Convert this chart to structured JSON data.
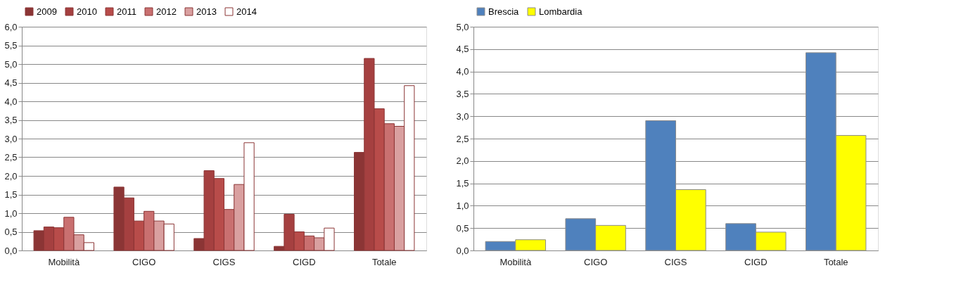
{
  "chart_data": [
    {
      "type": "bar",
      "categories": [
        "Mobilità",
        "CIGO",
        "CIGS",
        "CIGD",
        "Totale"
      ],
      "series": [
        {
          "name": "2009",
          "color": "#8b3535",
          "values": [
            0.53,
            1.7,
            0.32,
            0.11,
            2.63
          ]
        },
        {
          "name": "2010",
          "color": "#a54040",
          "values": [
            0.63,
            1.41,
            2.14,
            0.97,
            5.15
          ]
        },
        {
          "name": "2011",
          "color": "#b84c4a",
          "values": [
            0.61,
            0.79,
            1.93,
            0.5,
            3.8
          ]
        },
        {
          "name": "2012",
          "color": "#c97070",
          "values": [
            0.89,
            1.05,
            1.1,
            0.39,
            3.4
          ]
        },
        {
          "name": "2013",
          "color": "#d9a0a0",
          "values": [
            0.42,
            0.79,
            1.77,
            0.34,
            3.33
          ]
        },
        {
          "name": "2014",
          "color": "#ffffff",
          "values": [
            0.21,
            0.71,
            2.89,
            0.6,
            4.42
          ]
        }
      ],
      "ylim": [
        0,
        6
      ],
      "yticks": [
        {
          "value": 0,
          "label": "0,0"
        },
        {
          "value": 0.5,
          "label": "0,5"
        },
        {
          "value": 1,
          "label": "1,0"
        },
        {
          "value": 1.5,
          "label": "1,5"
        },
        {
          "value": 2,
          "label": "2,0"
        },
        {
          "value": 2.5,
          "label": "2,5"
        },
        {
          "value": 3,
          "label": "3,0"
        },
        {
          "value": 3.5,
          "label": "3,5"
        },
        {
          "value": 4,
          "label": "4,0"
        },
        {
          "value": 4.5,
          "label": "4,5"
        },
        {
          "value": 5,
          "label": "5,0"
        },
        {
          "value": 5.5,
          "label": "5,5"
        },
        {
          "value": 6,
          "label": "6,0"
        }
      ],
      "grid": "y",
      "legend": "top"
    },
    {
      "type": "bar",
      "categories": [
        "Mobilità",
        "CIGO",
        "CIGS",
        "CIGD",
        "Totale"
      ],
      "series": [
        {
          "name": "Brescia",
          "color": "#4f81bd",
          "values": [
            0.2,
            0.71,
            2.9,
            0.6,
            4.42
          ]
        },
        {
          "name": "Lombardia",
          "color": "#ffff00",
          "values": [
            0.24,
            0.56,
            1.36,
            0.41,
            2.57
          ]
        }
      ],
      "ylim": [
        0,
        5
      ],
      "yticks": [
        {
          "value": 0,
          "label": "0,0"
        },
        {
          "value": 0.5,
          "label": "0,5"
        },
        {
          "value": 1,
          "label": "1,0"
        },
        {
          "value": 1.5,
          "label": "1,5"
        },
        {
          "value": 2,
          "label": "2,0"
        },
        {
          "value": 2.5,
          "label": "2,5"
        },
        {
          "value": 3,
          "label": "3,0"
        },
        {
          "value": 3.5,
          "label": "3,5"
        },
        {
          "value": 4,
          "label": "4,0"
        },
        {
          "value": 4.5,
          "label": "4,5"
        },
        {
          "value": 5,
          "label": "5,0"
        }
      ],
      "grid": "y",
      "legend": "top"
    }
  ]
}
